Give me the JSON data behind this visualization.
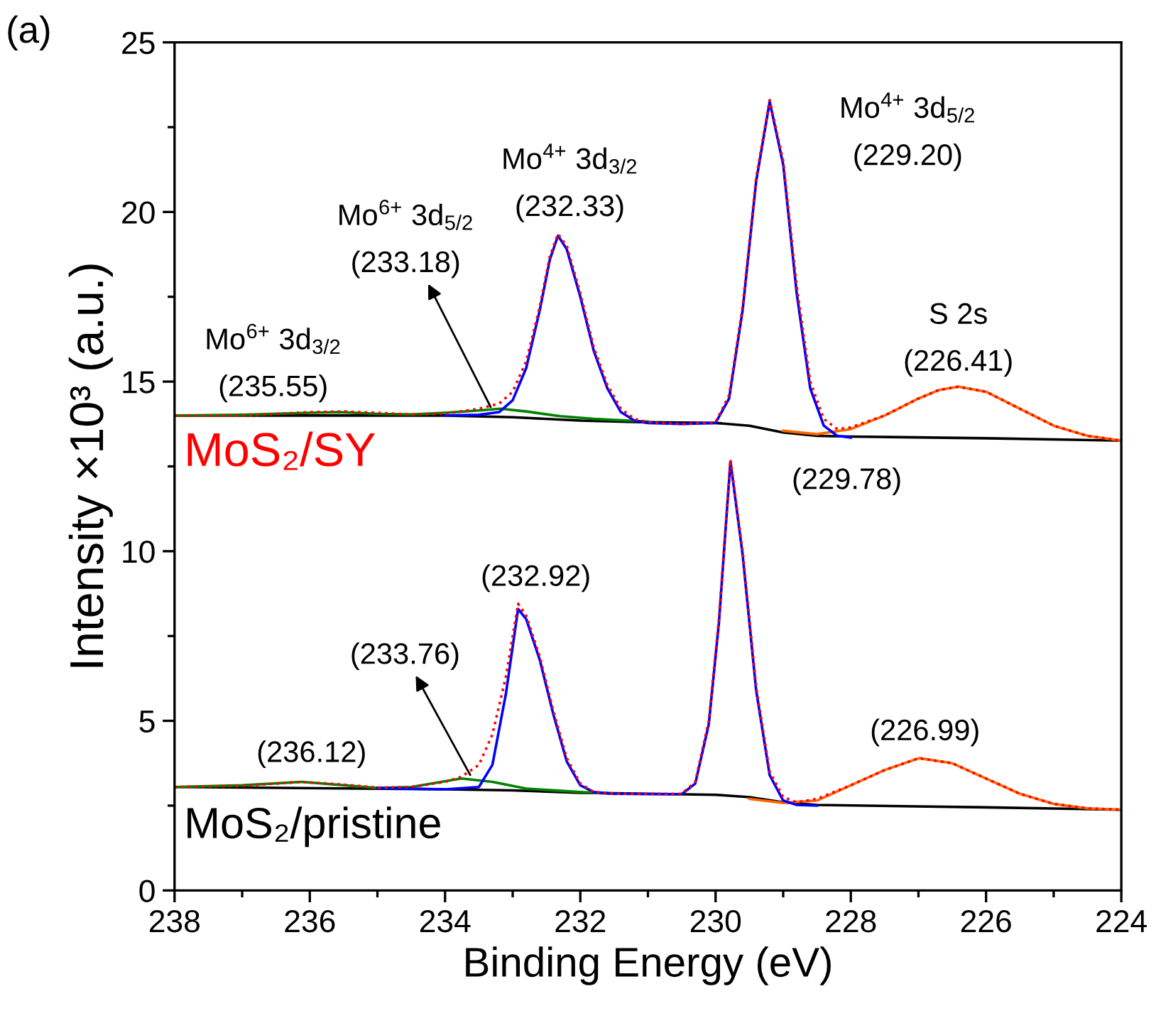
{
  "chart_data": {
    "type": "line",
    "xlabel": "Binding Energy (eV)",
    "ylabel": "Intensity ×10³ (a.u.)",
    "xlim": [
      238,
      224
    ],
    "ylim": [
      0,
      25
    ],
    "xticks": [
      238,
      236,
      234,
      232,
      230,
      228,
      226,
      224
    ],
    "yticks": [
      0,
      5,
      10,
      15,
      20,
      25
    ],
    "grid": false,
    "marker": "none",
    "series": [
      {
        "color": "#000000",
        "x": [
          238,
          234,
          233,
          232,
          231,
          230,
          229.5,
          229,
          228.5,
          228,
          226,
          224
        ],
        "values": [
          14.0,
          14.0,
          13.95,
          13.85,
          13.8,
          13.78,
          13.7,
          13.5,
          13.4,
          13.38,
          13.33,
          13.26
        ]
      },
      {
        "color": "#008000",
        "x": [
          238,
          237,
          236,
          235.55,
          235,
          234.5,
          234,
          233.5,
          233.18,
          232.8,
          232.3,
          231.8,
          231
        ],
        "values": [
          14.0,
          14.02,
          14.08,
          14.1,
          14.05,
          14.03,
          14.08,
          14.15,
          14.2,
          14.12,
          13.98,
          13.9,
          13.82
        ]
      },
      {
        "color": "#ff6600",
        "x": [
          229,
          228.5,
          228,
          227.5,
          227,
          226.7,
          226.41,
          226,
          225.5,
          225,
          224.5,
          224
        ],
        "values": [
          13.55,
          13.45,
          13.6,
          14.0,
          14.5,
          14.75,
          14.85,
          14.7,
          14.2,
          13.7,
          13.4,
          13.26
        ]
      },
      {
        "color": "#0000ff",
        "x": [
          234,
          233.5,
          233.2,
          233,
          232.8,
          232.6,
          232.45,
          232.33,
          232.2,
          232,
          231.8,
          231.6,
          231.4,
          231.2,
          231,
          230.5,
          230,
          229.8,
          229.6,
          229.4,
          229.2,
          229,
          228.8,
          228.6,
          228.4,
          228.2,
          228
        ],
        "values": [
          14.0,
          14.02,
          14.1,
          14.45,
          15.4,
          17.1,
          18.6,
          19.3,
          18.9,
          17.5,
          15.9,
          14.8,
          14.1,
          13.85,
          13.78,
          13.75,
          13.78,
          14.5,
          17.1,
          20.9,
          23.25,
          21.4,
          17.6,
          14.8,
          13.7,
          13.4,
          13.35
        ]
      },
      {
        "color": "#ff0000",
        "line_style": "dotted",
        "x": [
          238,
          237,
          236.5,
          236,
          235.5,
          235,
          234.5,
          234,
          233.5,
          233.2,
          233,
          232.8,
          232.6,
          232.45,
          232.33,
          232.2,
          232,
          231.8,
          231.6,
          231.4,
          231.2,
          231,
          230.5,
          230,
          229.8,
          229.6,
          229.4,
          229.2,
          229,
          228.8,
          228.6,
          228.4,
          228.2,
          228,
          227.5,
          227,
          226.7,
          226.41,
          226,
          225.5,
          225,
          224.5,
          224
        ],
        "values": [
          14.0,
          14.0,
          14.05,
          14.1,
          14.12,
          14.08,
          14.03,
          14.05,
          14.2,
          14.35,
          14.7,
          15.6,
          17.2,
          18.7,
          19.35,
          19.0,
          17.6,
          16.0,
          14.9,
          14.2,
          13.9,
          13.8,
          13.75,
          13.8,
          14.6,
          17.2,
          21.0,
          23.3,
          21.5,
          17.8,
          15.0,
          13.9,
          13.6,
          13.65,
          14.0,
          14.5,
          14.75,
          14.85,
          14.7,
          14.2,
          13.7,
          13.4,
          13.26
        ]
      },
      {
        "color": "#000000",
        "x": [
          238,
          234,
          233,
          232,
          231,
          230,
          229.5,
          229,
          228.5,
          226,
          224
        ],
        "values": [
          3.05,
          2.98,
          2.95,
          2.88,
          2.85,
          2.82,
          2.75,
          2.6,
          2.52,
          2.45,
          2.38
        ]
      },
      {
        "color": "#008000",
        "x": [
          238,
          237,
          236.12,
          235,
          234.5,
          233.76,
          233.3,
          232.8,
          232,
          231.5
        ],
        "values": [
          3.05,
          3.1,
          3.2,
          3.02,
          3.05,
          3.3,
          3.2,
          3.0,
          2.9,
          2.85
        ]
      },
      {
        "color": "#ff6600",
        "x": [
          229.5,
          229,
          228.5,
          228,
          227.5,
          226.99,
          226.5,
          226,
          225.5,
          225,
          224.5,
          224
        ],
        "values": [
          2.7,
          2.58,
          2.65,
          3.1,
          3.55,
          3.9,
          3.75,
          3.3,
          2.85,
          2.55,
          2.42,
          2.38
        ]
      },
      {
        "color": "#0000ff",
        "x": [
          235,
          234.5,
          234,
          233.5,
          233.3,
          233.1,
          232.92,
          232.8,
          232.6,
          232.4,
          232.2,
          232,
          231.8,
          231.5,
          231,
          230.5,
          230.3,
          230.1,
          229.95,
          229.78,
          229.6,
          229.4,
          229.2,
          229,
          228.8,
          228.5
        ],
        "values": [
          3.02,
          3.0,
          2.98,
          3.05,
          3.7,
          5.8,
          8.3,
          8.0,
          6.8,
          5.2,
          3.8,
          3.1,
          2.9,
          2.85,
          2.84,
          2.84,
          3.15,
          4.9,
          7.9,
          12.65,
          9.9,
          5.9,
          3.4,
          2.65,
          2.52,
          2.5
        ]
      },
      {
        "color": "#ff0000",
        "line_style": "dotted",
        "x": [
          238,
          237,
          236.5,
          236.12,
          235.5,
          235,
          234.5,
          234,
          233.76,
          233.5,
          233.3,
          233.1,
          232.92,
          232.8,
          232.6,
          232.4,
          232.2,
          232,
          231.8,
          231.5,
          231,
          230.5,
          230.3,
          230.1,
          229.95,
          229.78,
          229.6,
          229.4,
          229.2,
          229,
          228.8,
          228.5,
          228,
          227.5,
          226.99,
          226.5,
          226,
          225.5,
          225,
          224.5,
          224
        ],
        "values": [
          3.05,
          3.08,
          3.15,
          3.2,
          3.12,
          3.03,
          3.05,
          3.2,
          3.35,
          3.7,
          4.6,
          6.3,
          8.45,
          8.1,
          6.9,
          5.3,
          3.9,
          3.15,
          2.9,
          2.85,
          2.85,
          2.85,
          3.2,
          5.0,
          8.0,
          12.7,
          10.0,
          6.0,
          3.5,
          2.75,
          2.6,
          2.7,
          3.1,
          3.55,
          3.9,
          3.75,
          3.3,
          2.85,
          2.55,
          2.42,
          2.38
        ]
      }
    ],
    "annotations": [
      "(a)",
      "MoS₂/SY",
      "MoS₂/pristine",
      {
        "text": "Mo$^{6+}$ 3d$_{3/2}$\n(235.55)",
        "x": 235.55,
        "y": 14.1
      },
      {
        "text": "Mo$^{6+}$ 3d$_{5/2}$\n(233.18)",
        "x": 233.3,
        "y": 14.15
      },
      {
        "text": "Mo$^{4+}$ 3d$_{3/2}$\n(232.33)",
        "x": 232.33,
        "y": 19.35
      },
      {
        "text": "Mo$^{4+}$ 3d$_{5/2}$\n(229.20)",
        "x": 229.2,
        "y": 23.3
      },
      {
        "text": "S 2s\n(226.41)",
        "x": 226.41,
        "y": 14.85
      },
      {
        "text": "(236.12)",
        "x": 236.12,
        "y": 3.2
      },
      {
        "text": "(233.76)",
        "x": 233.6,
        "y": 3.3
      },
      {
        "text": "(232.92)",
        "x": 232.92,
        "y": 8.45
      },
      {
        "text": "(229.78)",
        "x": 229.78,
        "y": 12.7
      },
      {
        "text": "(226.99)",
        "x": 226.99,
        "y": 3.9
      }
    ]
  }
}
